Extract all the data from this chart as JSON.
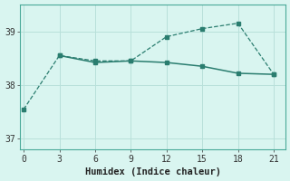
{
  "line1_x": [
    0,
    3,
    6,
    9,
    12,
    15,
    18,
    21
  ],
  "line1_y": [
    37.55,
    38.55,
    38.45,
    38.45,
    38.9,
    39.05,
    39.15,
    38.2
  ],
  "line2_x": [
    3,
    6,
    9,
    12,
    15,
    18,
    21
  ],
  "line2_y": [
    38.55,
    38.42,
    38.45,
    38.42,
    38.35,
    38.22,
    38.2
  ],
  "color": "#2a7d6f",
  "bg_color": "#d9f5f0",
  "xlabel": "Humidex (Indice chaleur)",
  "xlim": [
    -0.3,
    22
  ],
  "ylim": [
    36.8,
    39.5
  ],
  "xticks": [
    0,
    3,
    6,
    9,
    12,
    15,
    18,
    21
  ],
  "yticks": [
    37,
    38,
    39
  ],
  "grid_color": "#b8e0da",
  "axis_color": "#4aaa99"
}
